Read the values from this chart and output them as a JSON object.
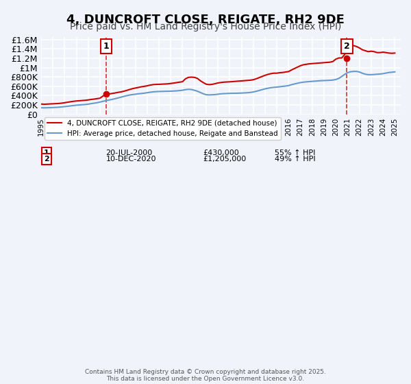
{
  "title": "4, DUNCROFT CLOSE, REIGATE, RH2 9DE",
  "subtitle": "Price paid vs. HM Land Registry's House Price Index (HPI)",
  "title_fontsize": 13,
  "subtitle_fontsize": 10,
  "background_color": "#f0f4fa",
  "plot_bg_color": "#f0f4fa",
  "grid_color": "#ffffff",
  "red_color": "#cc0000",
  "blue_color": "#6699cc",
  "xmin": 1995.0,
  "xmax": 2025.5,
  "ymin": 0,
  "ymax": 1650000,
  "yticks": [
    0,
    200000,
    400000,
    600000,
    800000,
    1000000,
    1200000,
    1400000,
    1600000
  ],
  "ytick_labels": [
    "£0",
    "£200K",
    "£400K",
    "£600K",
    "£800K",
    "£1M",
    "£1.2M",
    "£1.4M",
    "£1.6M"
  ],
  "sale1_x": 2000.54,
  "sale1_y": 430000,
  "sale1_label": "1",
  "sale1_date": "20-JUL-2000",
  "sale1_price": "£430,000",
  "sale1_hpi": "55% ↑ HPI",
  "sale2_x": 2020.94,
  "sale2_y": 1205000,
  "sale2_label": "2",
  "sale2_date": "10-DEC-2020",
  "sale2_price": "£1,205,000",
  "sale2_hpi": "49% ↑ HPI",
  "legend_line1": "4, DUNCROFT CLOSE, REIGATE, RH2 9DE (detached house)",
  "legend_line2": "HPI: Average price, detached house, Reigate and Banstead",
  "footer": "Contains HM Land Registry data © Crown copyright and database right 2025.\nThis data is licensed under the Open Government Licence v3.0.",
  "red_x": [
    1995.0,
    1995.25,
    1995.5,
    1995.75,
    1996.0,
    1996.25,
    1996.5,
    1996.75,
    1997.0,
    1997.25,
    1997.5,
    1997.75,
    1998.0,
    1998.25,
    1998.5,
    1998.75,
    1999.0,
    1999.25,
    1999.5,
    1999.75,
    2000.0,
    2000.25,
    2000.54,
    2000.75,
    2001.0,
    2001.25,
    2001.5,
    2001.75,
    2002.0,
    2002.25,
    2002.5,
    2002.75,
    2003.0,
    2003.25,
    2003.5,
    2003.75,
    2004.0,
    2004.25,
    2004.5,
    2004.75,
    2005.0,
    2005.25,
    2005.5,
    2005.75,
    2006.0,
    2006.25,
    2006.5,
    2006.75,
    2007.0,
    2007.25,
    2007.5,
    2007.75,
    2008.0,
    2008.25,
    2008.5,
    2008.75,
    2009.0,
    2009.25,
    2009.5,
    2009.75,
    2010.0,
    2010.25,
    2010.5,
    2010.75,
    2011.0,
    2011.25,
    2011.5,
    2011.75,
    2012.0,
    2012.25,
    2012.5,
    2012.75,
    2013.0,
    2013.25,
    2013.5,
    2013.75,
    2014.0,
    2014.25,
    2014.5,
    2014.75,
    2015.0,
    2015.25,
    2015.5,
    2015.75,
    2016.0,
    2016.25,
    2016.5,
    2016.75,
    2017.0,
    2017.25,
    2017.5,
    2017.75,
    2018.0,
    2018.25,
    2018.5,
    2018.75,
    2019.0,
    2019.25,
    2019.5,
    2019.75,
    2020.0,
    2020.25,
    2020.5,
    2020.75,
    2020.94,
    2021.0,
    2021.25,
    2021.5,
    2021.75,
    2022.0,
    2022.25,
    2022.5,
    2022.75,
    2023.0,
    2023.25,
    2023.5,
    2023.75,
    2024.0,
    2024.25,
    2024.5,
    2024.75,
    2025.0
  ],
  "red_y": [
    220000,
    215000,
    218000,
    222000,
    225000,
    228000,
    232000,
    238000,
    248000,
    258000,
    268000,
    278000,
    285000,
    290000,
    295000,
    300000,
    308000,
    318000,
    325000,
    335000,
    345000,
    390000,
    430000,
    435000,
    445000,
    455000,
    468000,
    478000,
    492000,
    510000,
    530000,
    548000,
    562000,
    575000,
    588000,
    598000,
    610000,
    625000,
    635000,
    640000,
    642000,
    645000,
    648000,
    652000,
    660000,
    668000,
    678000,
    688000,
    698000,
    760000,
    790000,
    795000,
    790000,
    770000,
    720000,
    680000,
    645000,
    635000,
    640000,
    655000,
    670000,
    680000,
    688000,
    692000,
    695000,
    700000,
    705000,
    710000,
    715000,
    720000,
    725000,
    730000,
    740000,
    760000,
    785000,
    810000,
    835000,
    855000,
    870000,
    880000,
    880000,
    890000,
    895000,
    905000,
    915000,
    950000,
    980000,
    1010000,
    1040000,
    1060000,
    1070000,
    1080000,
    1085000,
    1090000,
    1095000,
    1100000,
    1105000,
    1110000,
    1115000,
    1130000,
    1180000,
    1205000,
    1205000,
    1280000,
    1350000,
    1400000,
    1450000,
    1470000,
    1450000,
    1420000,
    1380000,
    1360000,
    1340000,
    1350000,
    1340000,
    1320000,
    1320000,
    1330000,
    1320000,
    1310000,
    1305000,
    1310000
  ],
  "blue_x": [
    1995.0,
    1995.25,
    1995.5,
    1995.75,
    1996.0,
    1996.25,
    1996.5,
    1996.75,
    1997.0,
    1997.25,
    1997.5,
    1997.75,
    1998.0,
    1998.25,
    1998.5,
    1998.75,
    1999.0,
    1999.25,
    1999.5,
    1999.75,
    2000.0,
    2000.25,
    2000.5,
    2000.75,
    2001.0,
    2001.25,
    2001.5,
    2001.75,
    2002.0,
    2002.25,
    2002.5,
    2002.75,
    2003.0,
    2003.25,
    2003.5,
    2003.75,
    2004.0,
    2004.25,
    2004.5,
    2004.75,
    2005.0,
    2005.25,
    2005.5,
    2005.75,
    2006.0,
    2006.25,
    2006.5,
    2006.75,
    2007.0,
    2007.25,
    2007.5,
    2007.75,
    2008.0,
    2008.25,
    2008.5,
    2008.75,
    2009.0,
    2009.25,
    2009.5,
    2009.75,
    2010.0,
    2010.25,
    2010.5,
    2010.75,
    2011.0,
    2011.25,
    2011.5,
    2011.75,
    2012.0,
    2012.25,
    2012.5,
    2012.75,
    2013.0,
    2013.25,
    2013.5,
    2013.75,
    2014.0,
    2014.25,
    2014.5,
    2014.75,
    2015.0,
    2015.25,
    2015.5,
    2015.75,
    2016.0,
    2016.25,
    2016.5,
    2016.75,
    2017.0,
    2017.25,
    2017.5,
    2017.75,
    2018.0,
    2018.25,
    2018.5,
    2018.75,
    2019.0,
    2019.25,
    2019.5,
    2019.75,
    2020.0,
    2020.25,
    2020.5,
    2020.75,
    2021.0,
    2021.25,
    2021.5,
    2021.75,
    2022.0,
    2022.25,
    2022.5,
    2022.75,
    2023.0,
    2023.25,
    2023.5,
    2023.75,
    2024.0,
    2024.25,
    2024.5,
    2024.75,
    2025.0
  ],
  "blue_y": [
    140000,
    138000,
    140000,
    142000,
    145000,
    148000,
    152000,
    158000,
    165000,
    172000,
    180000,
    188000,
    195000,
    200000,
    205000,
    210000,
    218000,
    228000,
    238000,
    248000,
    262000,
    278000,
    292000,
    305000,
    318000,
    332000,
    348000,
    365000,
    382000,
    398000,
    412000,
    422000,
    430000,
    438000,
    445000,
    452000,
    462000,
    472000,
    480000,
    485000,
    488000,
    490000,
    492000,
    493000,
    495000,
    498000,
    502000,
    508000,
    515000,
    528000,
    535000,
    530000,
    515000,
    495000,
    468000,
    440000,
    420000,
    415000,
    418000,
    422000,
    430000,
    438000,
    442000,
    445000,
    448000,
    450000,
    450000,
    452000,
    455000,
    458000,
    462000,
    468000,
    478000,
    492000,
    510000,
    528000,
    545000,
    558000,
    570000,
    578000,
    582000,
    590000,
    598000,
    605000,
    615000,
    635000,
    650000,
    665000,
    678000,
    688000,
    695000,
    700000,
    705000,
    710000,
    715000,
    720000,
    722000,
    725000,
    728000,
    732000,
    745000,
    768000,
    810000,
    855000,
    892000,
    910000,
    918000,
    918000,
    905000,
    878000,
    858000,
    848000,
    848000,
    852000,
    858000,
    862000,
    870000,
    882000,
    895000,
    900000,
    908000
  ]
}
